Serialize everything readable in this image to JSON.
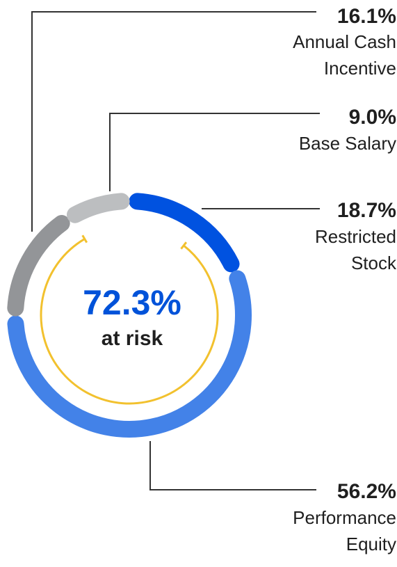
{
  "chart_data": {
    "type": "pie",
    "variant": "donut",
    "center": {
      "value": "72.3%",
      "label": "at risk"
    },
    "slices": [
      {
        "name": "Annual Cash Incentive",
        "label_lines": [
          "Annual Cash",
          "Incentive"
        ],
        "pct_label": "16.1%",
        "value": 16.1,
        "color": "#939598"
      },
      {
        "name": "Base Salary",
        "label_lines": [
          "Base Salary"
        ],
        "pct_label": "9.0%",
        "value": 9.0,
        "color": "#bcbec0"
      },
      {
        "name": "Restricted Stock",
        "label_lines": [
          "Restricted",
          "Stock"
        ],
        "pct_label": "18.7%",
        "value": 18.7,
        "color": "#0052e0"
      },
      {
        "name": "Performance Equity",
        "label_lines": [
          "Performance",
          "Equity"
        ],
        "pct_label": "56.2%",
        "value": 56.2,
        "color": "#4382e8"
      }
    ],
    "at_risk_arc_color": "#f2c12e",
    "center_value_color": "#0052d9",
    "leader_line_color": "#333333"
  }
}
